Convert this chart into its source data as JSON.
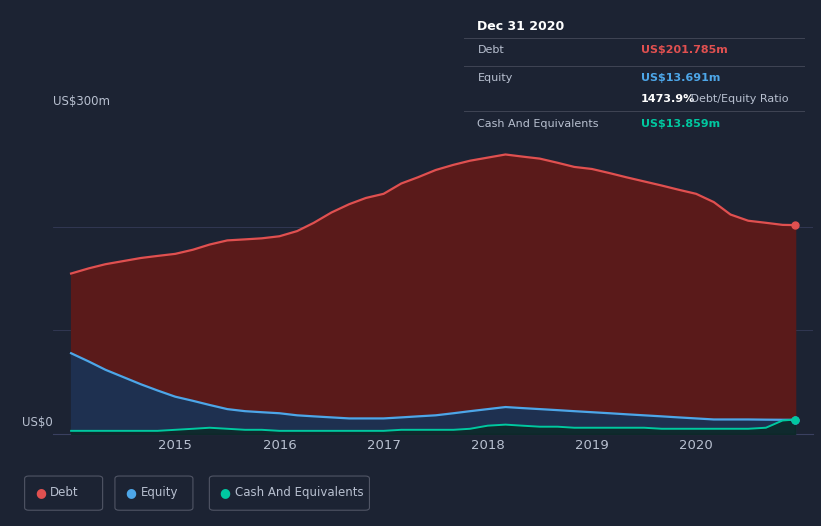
{
  "bg_color": "#1c2333",
  "plot_bg_color": "#1c2333",
  "x_years": [
    2014.0,
    2014.17,
    2014.33,
    2014.5,
    2014.67,
    2014.83,
    2015.0,
    2015.17,
    2015.33,
    2015.5,
    2015.67,
    2015.83,
    2016.0,
    2016.17,
    2016.33,
    2016.5,
    2016.67,
    2016.83,
    2017.0,
    2017.17,
    2017.33,
    2017.5,
    2017.67,
    2017.83,
    2018.0,
    2018.17,
    2018.33,
    2018.5,
    2018.67,
    2018.83,
    2019.0,
    2019.17,
    2019.33,
    2019.5,
    2019.67,
    2019.83,
    2020.0,
    2020.17,
    2020.33,
    2020.5,
    2020.67,
    2020.83,
    2020.95
  ],
  "debt": [
    155,
    160,
    164,
    167,
    170,
    172,
    174,
    178,
    183,
    187,
    188,
    189,
    191,
    196,
    204,
    214,
    222,
    228,
    232,
    242,
    248,
    255,
    260,
    264,
    267,
    270,
    268,
    266,
    262,
    258,
    256,
    252,
    248,
    244,
    240,
    236,
    232,
    224,
    212,
    206,
    204,
    202,
    201.785
  ],
  "equity": [
    78,
    70,
    62,
    55,
    48,
    42,
    36,
    32,
    28,
    24,
    22,
    21,
    20,
    18,
    17,
    16,
    15,
    15,
    15,
    16,
    17,
    18,
    20,
    22,
    24,
    26,
    25,
    24,
    23,
    22,
    21,
    20,
    19,
    18,
    17,
    16,
    15,
    14,
    14,
    14,
    13.8,
    13.7,
    13.691
  ],
  "cash": [
    3,
    3,
    3,
    3,
    3,
    3,
    4,
    5,
    6,
    5,
    4,
    4,
    3,
    3,
    3,
    3,
    3,
    3,
    3,
    4,
    4,
    4,
    4,
    5,
    8,
    9,
    8,
    7,
    7,
    6,
    6,
    6,
    6,
    6,
    5,
    5,
    5,
    5,
    5,
    5,
    6,
    13,
    13.859
  ],
  "debt_color": "#e05050",
  "equity_color": "#4da6e8",
  "cash_color": "#00c8a0",
  "debt_fill_color": "#5a1a1a",
  "equity_fill_color": "#1e3050",
  "cash_fill_color": "#0a2820",
  "ylabel_300": "US$300m",
  "ylabel_0": "US$0",
  "x_ticks": [
    2015,
    2016,
    2017,
    2018,
    2019,
    2020
  ],
  "x_tick_labels": [
    "2015",
    "2016",
    "2017",
    "2018",
    "2019",
    "2020"
  ],
  "ylim_max": 310,
  "tooltip_title": "Dec 31 2020",
  "tooltip_debt_label": "Debt",
  "tooltip_debt_value": "US$201.785m",
  "tooltip_equity_label": "Equity",
  "tooltip_equity_value": "US$13.691m",
  "tooltip_ratio": "1473.9%",
  "tooltip_ratio_label": " Debt/Equity Ratio",
  "tooltip_cash_label": "Cash And Equivalents",
  "tooltip_cash_value": "US$13.859m",
  "legend_debt": "Debt",
  "legend_equity": "Equity",
  "legend_cash": "Cash And Equivalents",
  "grid_color": "#3a4060",
  "text_color": "#b8c0d0",
  "dim_text_color": "#7a8090"
}
